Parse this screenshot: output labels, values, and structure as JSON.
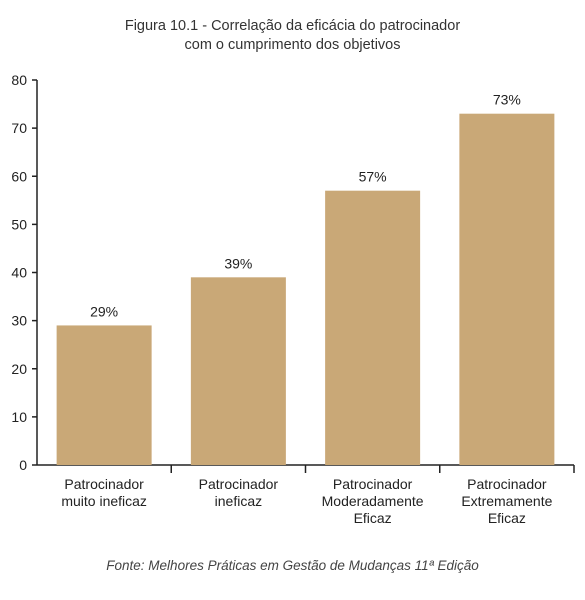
{
  "chart_data": {
    "type": "bar",
    "title": "Figura 10.1 - Correlação da eficácia do patrocinador com o cumprimento dos objetivos",
    "title_lines": [
      "Figura 10.1 - Correlação da eficácia do patrocinador",
      "com o cumprimento dos objetivos"
    ],
    "categories": [
      [
        "Patrocinador",
        "muito ineficaz"
      ],
      [
        "Patrocinador",
        "ineficaz"
      ],
      [
        "Patrocinador",
        "Moderadamente",
        "Eficaz"
      ],
      [
        "Patrocinador",
        "Extremamente",
        "Eficaz"
      ]
    ],
    "values": [
      29,
      39,
      57,
      73
    ],
    "data_labels": [
      "29%",
      "39%",
      "57%",
      "73%"
    ],
    "ylim": [
      0,
      80
    ],
    "yticks": [
      0,
      10,
      20,
      30,
      40,
      50,
      60,
      70,
      80
    ],
    "xlabel": "",
    "ylabel": "",
    "grid": false,
    "bar_color": "#c9a877",
    "source": "Fonte: Melhores Práticas em Gestão de Mudanças 11ª Edição"
  }
}
